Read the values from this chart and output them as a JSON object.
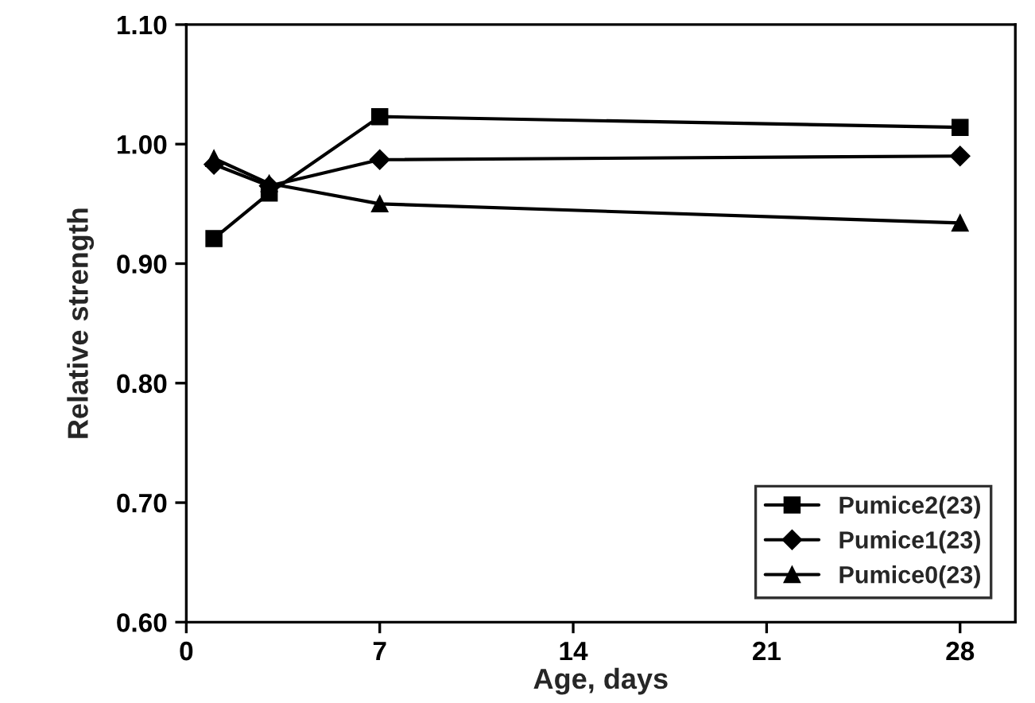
{
  "chart_data": {
    "type": "line",
    "xlabel": "Age, days",
    "ylabel": "Relative strength",
    "x": [
      1,
      3,
      7,
      28
    ],
    "xlim": [
      0,
      30
    ],
    "xticks": [
      0,
      7,
      14,
      21,
      28
    ],
    "ylim": [
      0.6,
      1.1
    ],
    "yticks": [
      {
        "value": 0.6,
        "label": "0.60"
      },
      {
        "value": 0.7,
        "label": "0.70"
      },
      {
        "value": 0.8,
        "label": "0.80"
      },
      {
        "value": 0.9,
        "label": "0.90"
      },
      {
        "value": 1.0,
        "label": "1.00"
      },
      {
        "value": 1.1,
        "label": "1.10"
      }
    ],
    "grid": false,
    "legend": "bottom right",
    "line_style": "solid",
    "series": [
      {
        "name": "Pumice2(23)",
        "color": "#000000",
        "marker": "square",
        "values": [
          0.921,
          0.959,
          1.023,
          1.014
        ]
      },
      {
        "name": "Pumice1(23)",
        "color": "#000000",
        "marker": "diamond",
        "values": [
          0.983,
          0.965,
          0.987,
          0.99
        ]
      },
      {
        "name": "Pumice0(23)",
        "color": "#000000",
        "marker": "triangle",
        "values": [
          0.988,
          0.967,
          0.95,
          0.934
        ]
      }
    ]
  }
}
